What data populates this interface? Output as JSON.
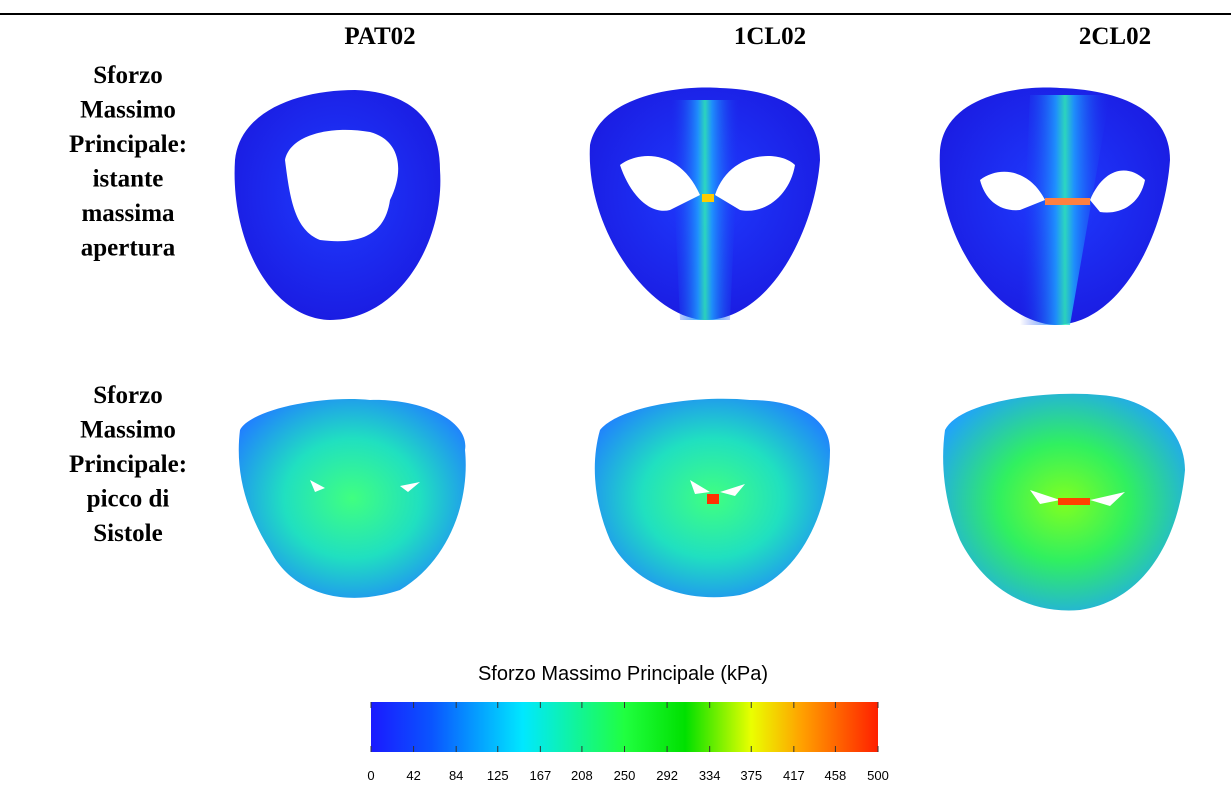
{
  "columns": [
    "PAT02",
    "1CL02",
    "2CL02"
  ],
  "rows": [
    {
      "label": [
        "Sforzo",
        "Massimo",
        "Principale:",
        "istante",
        "massima",
        "apertura"
      ]
    },
    {
      "label": [
        "Sforzo",
        "Massimo",
        "Principale:",
        "picco di",
        "Sistole"
      ]
    }
  ],
  "colorbar": {
    "title": "Sforzo Massimo Principale (kPa)",
    "lim": [
      0,
      500
    ],
    "ticks": [
      0,
      42,
      84,
      125,
      167,
      208,
      250,
      292,
      334,
      375,
      417,
      458,
      500
    ]
  }
}
